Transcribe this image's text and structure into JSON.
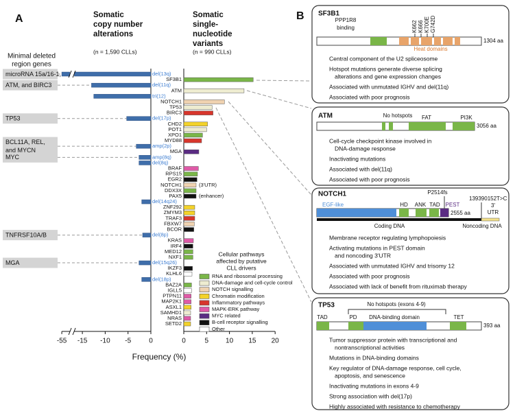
{
  "panel_labels": [
    "A",
    "B"
  ],
  "chart_data": [
    {
      "type": "hbar",
      "title": [
        "Somatic",
        "copy number",
        "alterations"
      ],
      "subtitle": "(n = 1,590 CLLs)",
      "region_heading": [
        "Minimal deleted",
        "region genes"
      ],
      "categories": [
        "del(13q)",
        null,
        "del(11q)",
        null,
        "tri(12)",
        null,
        null,
        null,
        "del(17p)",
        null,
        null,
        null,
        null,
        "amp(2p)",
        null,
        "amp(8q)",
        "del(8q)",
        null,
        null,
        null,
        null,
        null,
        null,
        "del(14q24)",
        null,
        null,
        null,
        null,
        null,
        "del(8p)",
        null,
        null,
        null,
        null,
        "del(15q26)",
        null,
        null,
        "del(18p)",
        null,
        null,
        null,
        null,
        null,
        null,
        null,
        null
      ],
      "values": [
        -55,
        null,
        -13,
        null,
        -12.5,
        null,
        null,
        null,
        -5.3,
        null,
        null,
        null,
        null,
        -3.2,
        null,
        -2.6,
        -2.6,
        null,
        null,
        null,
        null,
        null,
        null,
        -2.0,
        null,
        null,
        null,
        null,
        null,
        -1.8,
        null,
        null,
        null,
        null,
        -2.6,
        null,
        null,
        -2.0,
        null,
        null,
        null,
        null,
        null,
        null,
        null,
        null
      ],
      "region_genes": [
        [
          "microRNA 15a/16-1,"
        ],
        null,
        [
          "ATM, and BIRC3"
        ],
        null,
        null,
        null,
        null,
        null,
        [
          "TP53"
        ],
        null,
        null,
        null,
        null,
        [
          "BCL11A, REL,",
          "and MYCN"
        ],
        null,
        [
          "MYC"
        ],
        null,
        null,
        null,
        null,
        null,
        null,
        null,
        null,
        null,
        null,
        null,
        null,
        null,
        [
          "TNFRSF10A/B"
        ],
        null,
        null,
        null,
        null,
        [
          "MGA"
        ],
        null,
        null,
        null,
        null,
        null,
        null,
        null,
        null,
        null,
        null,
        null
      ],
      "color": "#3f6eaa",
      "label_color": "#3a7bd0",
      "xlim": [
        -55,
        0
      ],
      "xticks": [
        -55,
        -15,
        -10,
        -5,
        0
      ],
      "axis_break": true
    },
    {
      "type": "hbar",
      "title": [
        "Somatic",
        "single-",
        "nucleotide",
        "variants"
      ],
      "subtitle": "(n = 990 CLLs)",
      "categories": [
        null,
        "SF3B1",
        null,
        "ATM",
        null,
        "NOTCH1",
        "TP53",
        "BIRC3",
        null,
        "CHD2",
        "POT1",
        "XPO1",
        "MYD88",
        null,
        "MGA",
        null,
        null,
        "BRAF",
        "RPS15",
        "EGR2",
        "NOTCH1",
        "DDX3X",
        "PAX5",
        null,
        "ZNF292",
        "ZMYM3",
        "TRAF3",
        "FBXW7",
        "BCOR",
        null,
        "KRAS",
        "IRF4",
        "MED12",
        "NXF1",
        null,
        "IKZF3",
        "KLHL6",
        null,
        "BAZ2A",
        "IGLL5",
        "PTPN11",
        "MAP2K1",
        "ASXL1",
        "SAMHD1",
        "NRAS",
        "SETD2"
      ],
      "values": [
        null,
        15.2,
        null,
        13.2,
        null,
        8.9,
        6.2,
        6.4,
        null,
        5.2,
        5.0,
        4.1,
        3.9,
        null,
        3.3,
        null,
        null,
        3.2,
        3.0,
        2.9,
        2.7,
        2.7,
        2.7,
        null,
        2.4,
        2.4,
        2.4,
        2.3,
        2.2,
        null,
        2.1,
        2.0,
        2.0,
        2.0,
        null,
        1.9,
        1.8,
        null,
        1.7,
        1.7,
        1.6,
        1.6,
        1.6,
        1.5,
        1.5,
        1.5
      ],
      "colors": [
        null,
        "#7ab648",
        null,
        "#eeecd0",
        null,
        "#efd2b0",
        "#eeecd0",
        "#d7362c",
        null,
        "#f3d22a",
        "#eeecd0",
        "#7ab648",
        "#d7362c",
        null,
        "#5b2c83",
        null,
        null,
        "#df5aa7",
        "#7ab648",
        "#111111",
        "#efd2b0",
        "#7ab648",
        "#111111",
        null,
        "#f3d22a",
        "#f3d22a",
        "#d7362c",
        "#efd2b0",
        "#111111",
        null,
        "#df5aa7",
        "#111111",
        "#7ab648",
        "#7ab648",
        null,
        "#111111",
        "#ffffff",
        null,
        "#7ab648",
        "#ffffff",
        "#df5aa7",
        "#df5aa7",
        "#f3d22a",
        "#eeecd0",
        "#df5aa7",
        "#f3d22a"
      ],
      "notes": [
        null,
        null,
        null,
        null,
        null,
        null,
        null,
        null,
        null,
        null,
        null,
        null,
        null,
        null,
        null,
        null,
        null,
        null,
        null,
        null,
        "(3'UTR)",
        null,
        "(enhancer)",
        null,
        null,
        null,
        null,
        null,
        null,
        null,
        null,
        null,
        null,
        null,
        null,
        null,
        null,
        null,
        null,
        null,
        null,
        null,
        null,
        null,
        null,
        null
      ],
      "xlim": [
        0,
        20
      ],
      "xticks": [
        0,
        5,
        10,
        15,
        20
      ],
      "xlabel": "Frequency (%)",
      "legend": {
        "title": [
          "Cellular pathways",
          "affected by putative",
          "CLL drivers"
        ],
        "items": [
          {
            "name": "RNA and ribosomal processing",
            "color": "#7ab648"
          },
          {
            "name": "DNA-damage and cell-cycle control",
            "color": "#eeecd0"
          },
          {
            "name": "NOTCH signalling",
            "color": "#efd2b0"
          },
          {
            "name": "Chromatin modification",
            "color": "#f3d22a"
          },
          {
            "name": "Inflammatory pathways",
            "color": "#d7362c"
          },
          {
            "name": "MAPK-ERK pathway",
            "color": "#df5aa7"
          },
          {
            "name": "MYC related",
            "color": "#5b2c83"
          },
          {
            "name": "B-cell receptor signalling",
            "color": "#111111"
          },
          {
            "name": "Other",
            "color": "#ffffff"
          }
        ]
      }
    }
  ],
  "panel_b": {
    "genes": [
      {
        "name": "SF3B1",
        "length": "1304 aa",
        "labels": [
          "PPP1R8",
          "binding",
          "K662",
          "K666",
          "K700E",
          "G742D",
          "Heat domains"
        ],
        "bullets": [
          [
            "Central component of the U2 spliceosome"
          ],
          [
            "Hotspot mutations generate diverse splicing",
            "alterations and gene expression changes"
          ],
          [
            "Associated with unmutated IGHV and del(11q)"
          ],
          [
            "Associated with poor prognosis"
          ]
        ]
      },
      {
        "name": "ATM",
        "length": "3056 aa",
        "labels": [
          "No hotspots",
          "FAT",
          "PI3K"
        ],
        "bullets": [
          [
            "Cell-cycle checkpoint kinase involved in",
            "DNA-damage response"
          ],
          [
            "Inactivating mutations"
          ],
          [
            "Associated with del(11q)"
          ],
          [
            "Associated with poor prognosis"
          ]
        ]
      },
      {
        "name": "NOTCH1",
        "length": "2555 aa",
        "labels": [
          "P2514fs",
          "139390152T>C",
          "EGF-like",
          "HD",
          "ANK",
          "TAD",
          "PEST",
          "3'",
          "UTR",
          "Coding DNA",
          "Noncoding DNA"
        ],
        "bullets": [
          [
            "Membrane receptor regulating lymphopoiesis"
          ],
          [
            "Activating mutations in PEST domain",
            "and noncoding 3'UTR"
          ],
          [
            "Associated with unmutated IGHV and trisomy 12"
          ],
          [
            "Associated with poor prognosis"
          ],
          [
            "Associated with lack of benefit from rituximab therapy"
          ]
        ]
      },
      {
        "name": "TP53",
        "length": "393 aa",
        "labels": [
          "No hotspots (exons 4-9)",
          "TAD",
          "PD",
          "DNA-binding domain",
          "TET"
        ],
        "bullets": [
          [
            "Tumor suppressor protein with transcriptional and",
            "nontranscriptional activities"
          ],
          [
            "Mutations in DNA-binding domains"
          ],
          [
            "Key regulator of DNA-damage response, cell cycle,",
            "apoptosis, and senescence"
          ],
          [
            "Inactivating mutations in exons 4-9"
          ],
          [
            "Strong association with del(17p)"
          ],
          [
            "Highly associated with resistance to chemotherapy"
          ]
        ]
      }
    ]
  }
}
